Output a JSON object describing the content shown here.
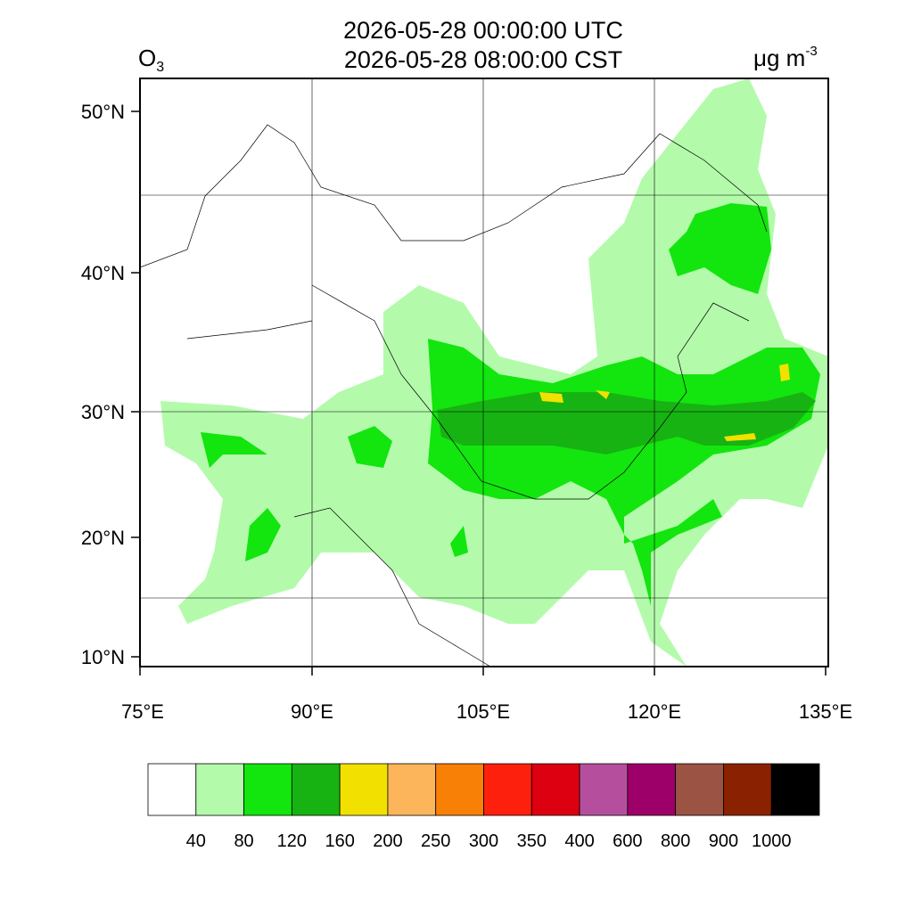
{
  "header": {
    "title_utc": "2026-05-28 00:00:00 UTC",
    "title_cst": "2026-05-28 08:00:00 CST",
    "species": "O",
    "species_sub": "3",
    "unit": "μg m",
    "unit_exp": "-3"
  },
  "axes": {
    "lon_labels": [
      "75°E",
      "90°E",
      "105°E",
      "120°E",
      "135°E"
    ],
    "lat_labels": [
      "10°N",
      "20°N",
      "30°N",
      "40°N",
      "50°N"
    ]
  },
  "colorbar": {
    "levels": [
      40,
      80,
      120,
      160,
      200,
      250,
      300,
      350,
      400,
      600,
      800,
      900,
      1000
    ],
    "colors": [
      "#ffffff",
      "#b3fbab",
      "#13e50f",
      "#17b313",
      "#f2e100",
      "#fdb55b",
      "#f88007",
      "#fc200d",
      "#dc0010",
      "#b54f9d",
      "#9d0068",
      "#9b5444",
      "#8a2100",
      "#000000"
    ]
  }
}
